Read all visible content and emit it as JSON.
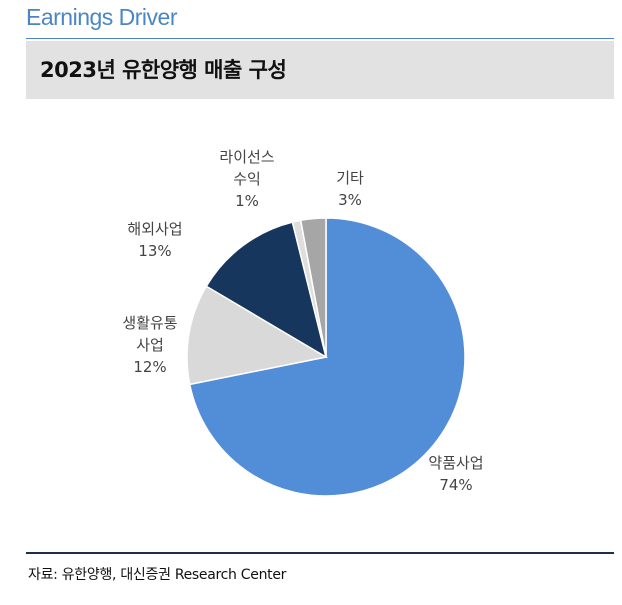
{
  "header": {
    "section_title": "Earnings Driver",
    "chart_title": "2023년 유한양행 매출 구성"
  },
  "colors": {
    "accent": "#4a86c6",
    "rule": "#4a86c6"
  },
  "chart_data": {
    "type": "pie",
    "title": "2023년 유한양행 매출 구성",
    "slices": [
      {
        "label_lines": [
          "약품사업"
        ],
        "value": 74,
        "value_label": "74%",
        "color": "#528ed8"
      },
      {
        "label_lines": [
          "생활유통",
          "사업"
        ],
        "value": 12,
        "value_label": "12%",
        "color": "#d9d9d9"
      },
      {
        "label_lines": [
          "해외사업"
        ],
        "value": 13,
        "value_label": "13%",
        "color": "#17365d"
      },
      {
        "label_lines": [
          "라이선스",
          "수익"
        ],
        "value": 1,
        "value_label": "1%",
        "color": "#dedede"
      },
      {
        "label_lines": [
          "기타"
        ],
        "value": 3,
        "value_label": "3%",
        "color": "#a6a6a6"
      }
    ]
  },
  "footer": {
    "source": "자료: 유한양행, 대신증권 Research Center"
  }
}
